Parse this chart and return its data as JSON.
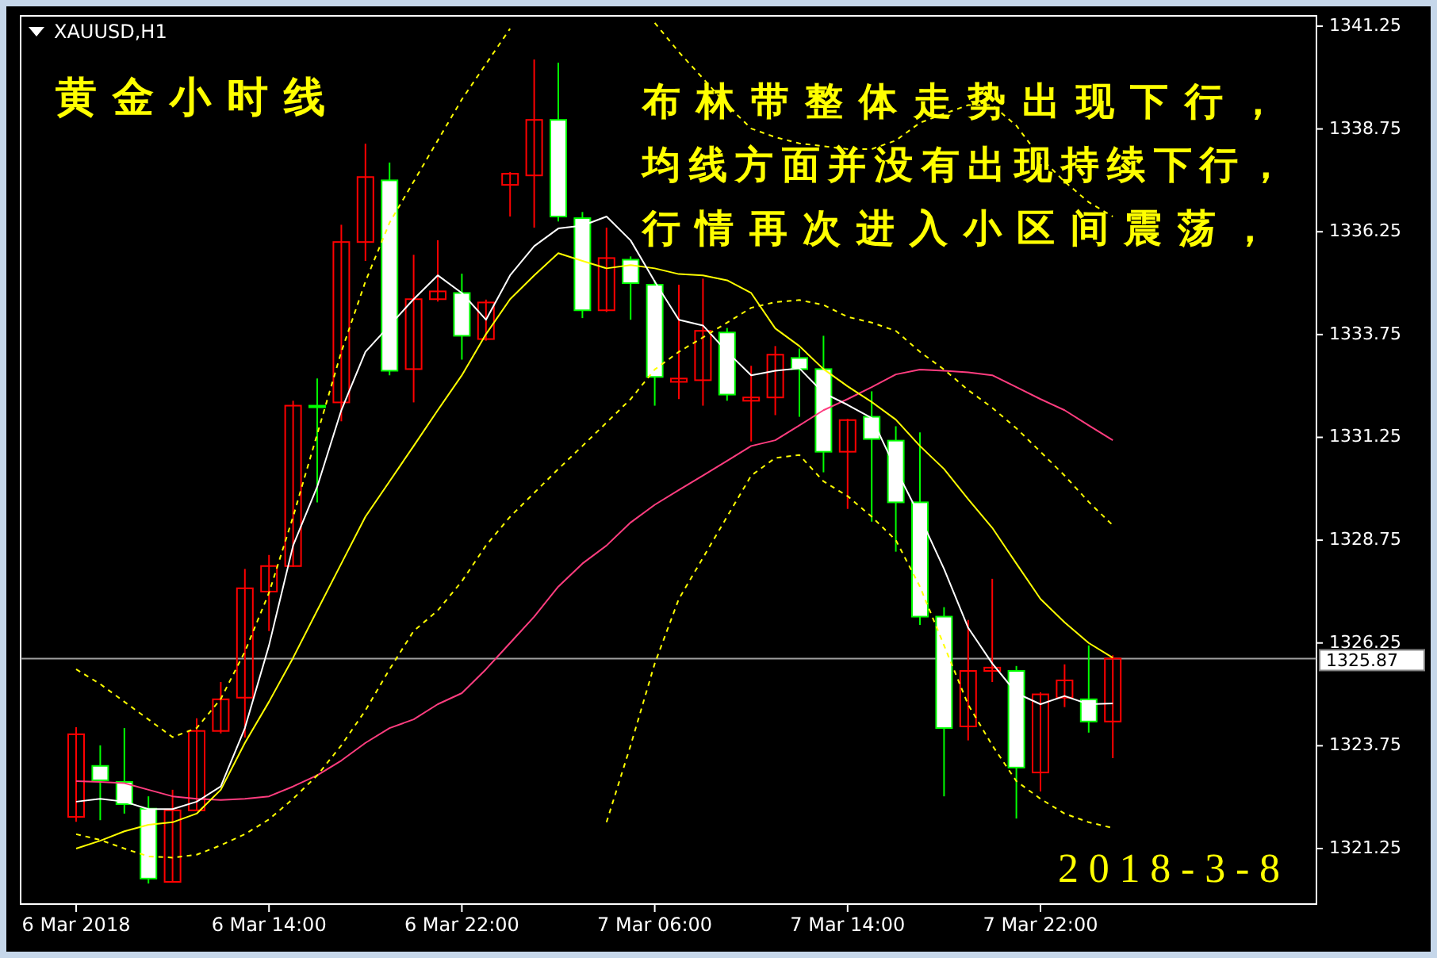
{
  "chart_data": {
    "type": "candlestick",
    "title": "XAUUSD,H1",
    "categories": [
      "6 Mar 2018",
      null,
      null,
      null,
      null,
      null,
      null,
      null,
      "6 Mar 14:00",
      null,
      null,
      null,
      null,
      null,
      null,
      null,
      "6 Mar 22:00",
      null,
      null,
      null,
      null,
      null,
      null,
      null,
      "7 Mar 06:00",
      null,
      null,
      null,
      null,
      null,
      null,
      null,
      "7 Mar 14:00",
      null,
      null,
      null,
      null,
      null,
      null,
      null,
      "7 Mar 22:00",
      null,
      null,
      null
    ],
    "ohlc": [
      [
        1322.02,
        1324.2,
        1321.9,
        1324.03
      ],
      [
        1323.26,
        1323.76,
        1321.94,
        1322.91
      ],
      [
        1322.87,
        1324.18,
        1322.1,
        1322.33
      ],
      [
        1322.22,
        1322.52,
        1320.4,
        1320.52
      ],
      [
        1320.44,
        1322.68,
        1320.44,
        1322.18
      ],
      [
        1322.18,
        1324.42,
        1322.18,
        1324.11
      ],
      [
        1324.11,
        1325.3,
        1324.05,
        1324.88
      ],
      [
        1324.92,
        1328.05,
        1323.95,
        1327.58
      ],
      [
        1327.5,
        1328.39,
        1326.54,
        1328.12
      ],
      [
        1328.12,
        1332.14,
        1328.1,
        1332.02
      ],
      [
        1332.02,
        1332.68,
        1329.67,
        1332.02
      ],
      [
        1332.1,
        1336.42,
        1331.64,
        1336.0
      ],
      [
        1336.0,
        1338.39,
        1335.54,
        1337.58
      ],
      [
        1337.5,
        1337.93,
        1332.76,
        1332.87
      ],
      [
        1332.91,
        1335.69,
        1332.1,
        1334.61
      ],
      [
        1334.61,
        1336.04,
        1334.55,
        1334.8
      ],
      [
        1334.76,
        1335.23,
        1333.14,
        1333.72
      ],
      [
        1333.64,
        1334.6,
        1333.6,
        1334.53
      ],
      [
        1337.39,
        1337.7,
        1336.62,
        1337.66
      ],
      [
        1337.62,
        1340.44,
        1336.35,
        1338.97
      ],
      [
        1338.97,
        1340.36,
        1336.5,
        1336.62
      ],
      [
        1336.58,
        1336.73,
        1334.15,
        1334.34
      ],
      [
        1334.34,
        1336.35,
        1334.3,
        1335.61
      ],
      [
        1335.57,
        1335.65,
        1334.11,
        1335.0
      ],
      [
        1334.96,
        1335.07,
        1332.02,
        1332.72
      ],
      [
        1332.6,
        1334.96,
        1332.18,
        1332.68
      ],
      [
        1332.64,
        1335.11,
        1332.02,
        1333.84
      ],
      [
        1333.8,
        1333.91,
        1332.14,
        1332.29
      ],
      [
        1332.14,
        1332.99,
        1331.15,
        1332.22
      ],
      [
        1332.22,
        1333.47,
        1331.79,
        1333.26
      ],
      [
        1333.18,
        1333.41,
        1331.75,
        1332.91
      ],
      [
        1332.91,
        1333.72,
        1330.4,
        1330.9
      ],
      [
        1330.9,
        1331.7,
        1329.51,
        1331.67
      ],
      [
        1331.75,
        1332.37,
        1329.2,
        1331.21
      ],
      [
        1331.17,
        1331.52,
        1328.47,
        1329.67
      ],
      [
        1329.67,
        1331.37,
        1326.69,
        1326.89
      ],
      [
        1326.89,
        1327.12,
        1322.52,
        1324.18
      ],
      [
        1324.22,
        1326.81,
        1323.88,
        1325.57
      ],
      [
        1325.57,
        1327.81,
        1325.3,
        1325.65
      ],
      [
        1325.57,
        1325.69,
        1321.98,
        1323.22
      ],
      [
        1323.1,
        1325.05,
        1322.64,
        1325.0
      ],
      [
        1324.92,
        1325.73,
        1324.69,
        1325.34
      ],
      [
        1324.88,
        1326.19,
        1324.07,
        1324.34
      ],
      [
        1324.34,
        1325.95,
        1323.45,
        1325.87
      ]
    ],
    "series": [
      {
        "type": "line",
        "color": "#ff3d7f",
        "line_style": "solid",
        "values": [
          1322.89,
          1322.87,
          1322.84,
          1322.68,
          1322.52,
          1322.46,
          1322.43,
          1322.46,
          1322.52,
          1322.76,
          1323.03,
          1323.39,
          1323.82,
          1324.18,
          1324.39,
          1324.76,
          1325.03,
          1325.61,
          1326.25,
          1326.89,
          1327.62,
          1328.18,
          1328.62,
          1329.18,
          1329.61,
          1329.97,
          1330.32,
          1330.68,
          1331.04,
          1331.18,
          1331.54,
          1331.91,
          1332.18,
          1332.47,
          1332.78,
          1332.9,
          1332.87,
          1332.83,
          1332.76,
          1332.47,
          1332.18,
          1331.91,
          1331.54,
          1331.18
        ]
      },
      {
        "type": "line",
        "color": "#ffff00",
        "line_style": "solid",
        "values": [
          1321.25,
          1321.44,
          1321.67,
          1321.83,
          1321.89,
          1322.1,
          1322.68,
          1323.82,
          1324.82,
          1325.89,
          1327.04,
          1328.18,
          1329.32,
          1330.18,
          1331.04,
          1331.91,
          1332.76,
          1333.76,
          1334.61,
          1335.19,
          1335.73,
          1335.54,
          1335.36,
          1335.44,
          1335.36,
          1335.22,
          1335.19,
          1335.07,
          1334.76,
          1333.9,
          1333.47,
          1332.91,
          1332.49,
          1332.11,
          1331.68,
          1331.04,
          1330.48,
          1329.75,
          1329.05,
          1328.18,
          1327.32,
          1326.75,
          1326.25,
          1325.89
        ]
      },
      {
        "type": "line",
        "color": "#ffffff",
        "line_style": "solid",
        "values": [
          1322.39,
          1322.46,
          1322.39,
          1322.21,
          1322.21,
          1322.39,
          1322.76,
          1324.18,
          1326.19,
          1328.62,
          1330.05,
          1331.91,
          1333.33,
          1333.97,
          1334.61,
          1335.19,
          1334.76,
          1334.11,
          1335.19,
          1335.9,
          1336.33,
          1336.4,
          1336.62,
          1336.04,
          1335.04,
          1334.11,
          1333.97,
          1333.33,
          1332.76,
          1332.87,
          1332.93,
          1332.33,
          1332.04,
          1331.72,
          1330.48,
          1329.32,
          1328.05,
          1326.62,
          1325.75,
          1325.03,
          1324.76,
          1324.96,
          1324.76,
          1324.78
        ]
      },
      {
        "type": "line",
        "color": "#ffff00",
        "line_style": "dashed",
        "values": [
          1325.61,
          1325.25,
          1324.82,
          1324.39,
          1323.96,
          1324.18,
          1324.89,
          1326.04,
          1327.47,
          1329.32,
          1331.33,
          1333.33,
          1335.04,
          1336.47,
          1337.47,
          1338.47,
          1339.47,
          1340.33,
          1341.19,
          null,
          null,
          null,
          null,
          null,
          1341.33,
          1340.62,
          1339.98,
          1339.33,
          1338.76,
          1338.55,
          1338.4,
          1338.33,
          1338.26,
          1338.26,
          1338.47,
          1338.9,
          1339.12,
          1339.33,
          1339.33,
          1338.83,
          1338.05,
          1337.47,
          1336.97,
          1336.62
        ]
      },
      {
        "type": "line",
        "color": "#ffff00",
        "line_style": "dashed",
        "values": [
          1321.6,
          1321.46,
          1321.25,
          1321.06,
          1321.03,
          1321.1,
          1321.33,
          1321.6,
          1321.96,
          1322.46,
          1323.03,
          1323.76,
          1324.61,
          1325.61,
          1326.54,
          1327.04,
          1327.75,
          1328.62,
          1329.32,
          1329.9,
          1330.48,
          1331.04,
          1331.61,
          1332.18,
          1332.9,
          1333.33,
          1333.68,
          1334.04,
          1334.4,
          1334.54,
          1334.59,
          1334.47,
          1334.18,
          1334.04,
          1333.84,
          1333.33,
          1332.9,
          1332.4,
          1331.97,
          1331.47,
          1330.9,
          1330.32,
          1329.68,
          1329.11
        ]
      },
      {
        "type": "line",
        "color": "#ffff00",
        "line_style": "dashed",
        "values": [
          null,
          null,
          null,
          null,
          null,
          null,
          null,
          null,
          null,
          null,
          null,
          null,
          null,
          null,
          null,
          null,
          null,
          null,
          null,
          null,
          null,
          null,
          1321.89,
          1323.76,
          1325.75,
          1327.32,
          1328.32,
          1329.32,
          1330.32,
          1330.75,
          1330.82,
          1330.18,
          1329.82,
          1329.32,
          1328.75,
          1327.62,
          1326.19,
          1324.75,
          1323.76,
          1322.89,
          1322.46,
          1322.1,
          1321.89,
          1321.75
        ]
      }
    ],
    "ylim": [
      1319.9,
      1341.5
    ],
    "yticks": [
      1321.25,
      1323.75,
      1326.25,
      1328.75,
      1331.25,
      1333.75,
      1336.25,
      1338.75,
      1341.25
    ],
    "ref_lines": [
      {
        "axis": "y",
        "value": 1325.87,
        "label": "1325.87",
        "color": "#a0a0a0"
      }
    ],
    "annotations": [
      "黄金小时线",
      "布林带整体走势出现下行，",
      "均线方面并没有出现持续下行，",
      "行情再次进入小区间震荡，",
      "2018-3-8"
    ]
  }
}
